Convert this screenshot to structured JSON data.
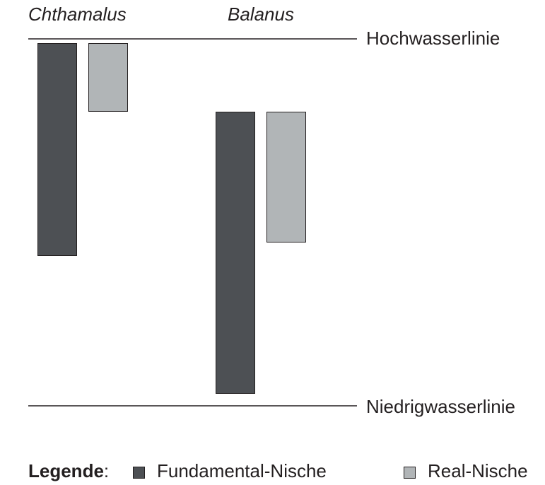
{
  "species": [
    "Chthamalus",
    "Balanus"
  ],
  "lines": {
    "high": "Hochwasserlinie",
    "low": "Niedrigwasserlinie"
  },
  "legend": {
    "title": "Legende",
    "separator": ":",
    "items": [
      "Fundamental-Nische",
      "Real-Nische"
    ]
  }
}
